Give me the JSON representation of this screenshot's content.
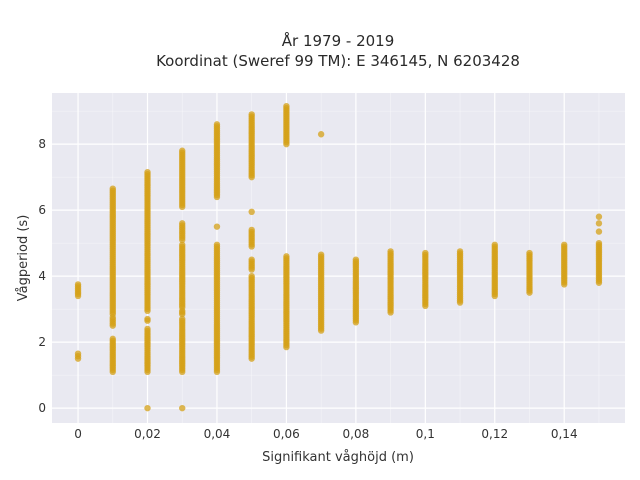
{
  "chart_data": {
    "type": "scatter",
    "title_line1": "År 1979 - 2019",
    "title_line2": "Koordinat (Sweref 99 TM): E 346145, N 6203428",
    "xlabel": "Signifikant våghöjd (m)",
    "ylabel": "Vågperiod (s)",
    "xlim": [
      -0.0075,
      0.1575
    ],
    "ylim": [
      -0.45,
      9.55
    ],
    "x_ticks": [
      0,
      0.02,
      0.04,
      0.06,
      0.08,
      0.1,
      0.12,
      0.14
    ],
    "x_tick_labels": [
      "0",
      "0,02",
      "0,04",
      "0,06",
      "0,08",
      "0,1",
      "0,12",
      "0,14"
    ],
    "y_ticks": [
      0,
      2,
      4,
      6,
      8
    ],
    "y_tick_labels": [
      "0",
      "2",
      "4",
      "6",
      "8"
    ],
    "grid": true,
    "colors": {
      "points": "#d4a017",
      "plot_bg": "#e9e9f1",
      "grid": "#ffffff"
    },
    "clusters": [
      {
        "x": 0,
        "segments": [
          [
            1.5,
            1.65
          ],
          [
            3.4,
            3.75
          ]
        ]
      },
      {
        "x": 0.01,
        "segments": [
          [
            1.1,
            2.1
          ],
          [
            2.5,
            2.75
          ],
          [
            2.85,
            6.65
          ]
        ]
      },
      {
        "x": 0.02,
        "segments": [
          [
            0,
            0.02
          ],
          [
            1.1,
            2.4
          ],
          [
            2.65,
            2.7
          ],
          [
            2.95,
            7.15
          ]
        ]
      },
      {
        "x": 0.03,
        "segments": [
          [
            0,
            0.02
          ],
          [
            1.1,
            2.7
          ],
          [
            2.85,
            2.95
          ],
          [
            3.05,
            4.95
          ],
          [
            5.1,
            5.6
          ],
          [
            6.1,
            7.8
          ]
        ]
      },
      {
        "x": 0.04,
        "segments": [
          [
            1.1,
            4.95
          ],
          [
            5.5,
            5.5
          ],
          [
            6.4,
            8.6
          ]
        ]
      },
      {
        "x": 0.05,
        "segments": [
          [
            1.5,
            4.0
          ],
          [
            4.2,
            4.5
          ],
          [
            4.9,
            5.4
          ],
          [
            5.95,
            5.95
          ],
          [
            7.0,
            8.9
          ]
        ]
      },
      {
        "x": 0.06,
        "segments": [
          [
            1.85,
            4.6
          ],
          [
            8.0,
            9.15
          ]
        ]
      },
      {
        "x": 0.07,
        "segments": [
          [
            2.35,
            4.65
          ],
          [
            8.3,
            8.3
          ]
        ]
      },
      {
        "x": 0.08,
        "segments": [
          [
            2.6,
            4.5
          ]
        ]
      },
      {
        "x": 0.09,
        "segments": [
          [
            2.9,
            4.75
          ]
        ]
      },
      {
        "x": 0.1,
        "segments": [
          [
            3.1,
            4.7
          ]
        ]
      },
      {
        "x": 0.11,
        "segments": [
          [
            3.2,
            4.75
          ]
        ]
      },
      {
        "x": 0.12,
        "segments": [
          [
            3.4,
            4.95
          ]
        ]
      },
      {
        "x": 0.13,
        "segments": [
          [
            3.5,
            4.7
          ]
        ]
      },
      {
        "x": 0.14,
        "segments": [
          [
            3.75,
            4.95
          ]
        ]
      },
      {
        "x": 0.15,
        "segments": [
          [
            3.8,
            5.0
          ],
          [
            5.35,
            5.35
          ],
          [
            5.6,
            5.6
          ],
          [
            5.8,
            5.8
          ]
        ]
      }
    ]
  }
}
